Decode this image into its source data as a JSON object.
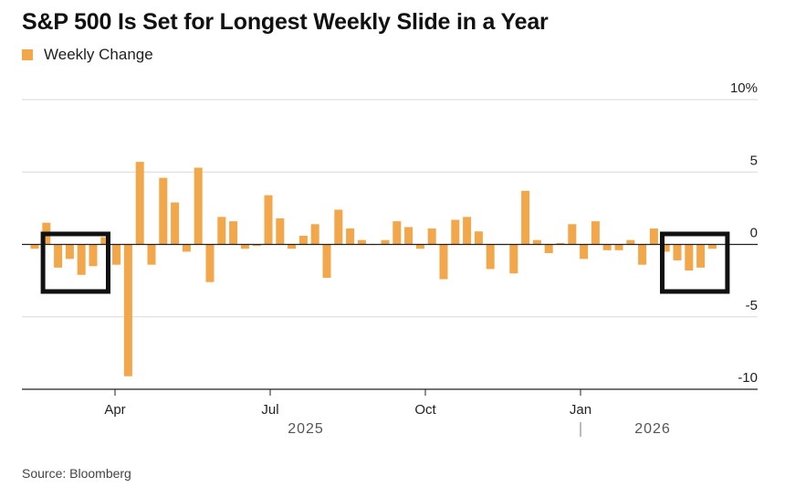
{
  "title": "S&P 500 Is Set for Longest Weekly Slide in a Year",
  "source": "Source: Bloomberg",
  "colors": {
    "bar": "#f2a74b",
    "grid": "#d9d9d9",
    "axis": "#222222",
    "highlight_box": "#111111"
  },
  "chart_data": {
    "type": "bar",
    "title": "S&P 500 Is Set for Longest Weekly Slide in a Year",
    "legend": [
      "Weekly Change"
    ],
    "legend_placement": "top-left",
    "grid": true,
    "y_axis_side": "right",
    "ylim": [
      -10,
      10
    ],
    "y_ticks": [
      {
        "value": 10,
        "label": "10%"
      },
      {
        "value": 5,
        "label": "5"
      },
      {
        "value": 0,
        "label": "0"
      },
      {
        "value": -5,
        "label": "-5"
      },
      {
        "value": -10,
        "label": "-10"
      }
    ],
    "x_ticks": [
      "Apr",
      "Jul",
      "Oct",
      "Jan"
    ],
    "years": [
      "2025",
      "2026"
    ],
    "series": [
      {
        "name": "Weekly Change",
        "values": [
          -0.3,
          1.5,
          -1.6,
          -1.0,
          -2.1,
          -1.5,
          0.5,
          -1.4,
          -9.1,
          5.7,
          -1.4,
          4.6,
          2.9,
          -0.5,
          5.3,
          -2.6,
          1.9,
          1.6,
          -0.3,
          -0.1,
          3.4,
          1.8,
          -0.3,
          0.6,
          1.4,
          -2.3,
          2.4,
          1.1,
          0.3,
          0.0,
          0.3,
          1.6,
          1.2,
          -0.3,
          1.1,
          -2.4,
          1.7,
          1.9,
          0.9,
          -1.7,
          0.0,
          -2.0,
          3.7,
          0.3,
          -0.6,
          0.1,
          1.4,
          -1.0,
          1.6,
          -0.4,
          -0.4,
          0.3,
          -1.4,
          1.1,
          -0.5,
          -1.1,
          -1.8,
          -1.6,
          -0.3
        ]
      }
    ],
    "highlights": [
      {
        "from_index": 2,
        "to_index": 5
      },
      {
        "from_index": 55,
        "to_index": 58
      }
    ]
  }
}
